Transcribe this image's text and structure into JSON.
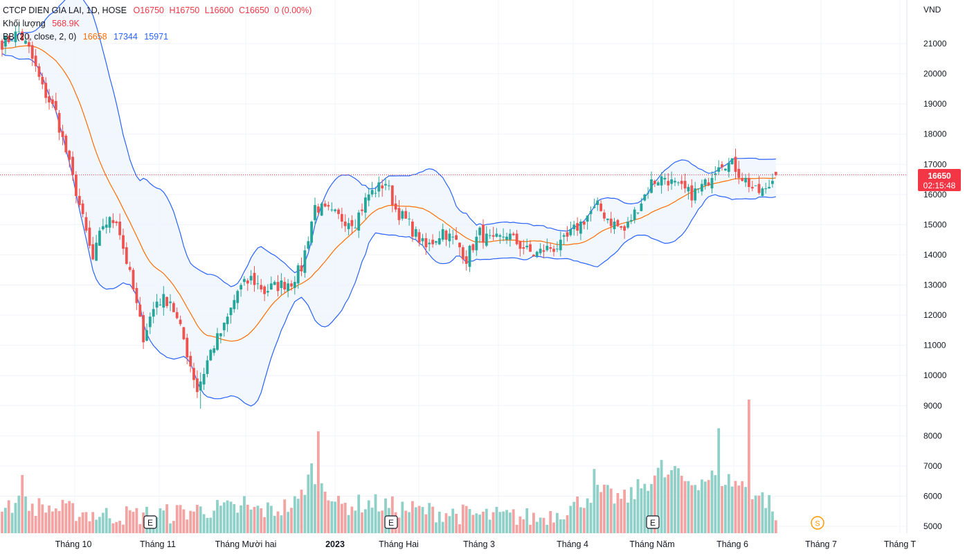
{
  "header": {
    "symbol": "CTCP DIEN GIA LAI, 1D, HOSE",
    "open": "O16750",
    "high": "H16750",
    "low": "L16600",
    "close": "C16650",
    "change": "0 (0.00%)",
    "volume_label": "Khối lượng",
    "volume_value": "568.9K",
    "bb_label": "BB (20, close, 2, 0)",
    "bb_mid": "16658",
    "bb_upper": "17344",
    "bb_lower": "15971"
  },
  "price_tag": {
    "value": "16650",
    "countdown": "02:15:48"
  },
  "colors": {
    "up": "#26a69a",
    "down": "#ef5350",
    "bb_mid": "#ff6d00",
    "bb_band": "#2962ff",
    "bb_fill": "#eef5fc",
    "price_tag": "#f23645"
  },
  "chart_data": {
    "type": "candlestick",
    "currency_label": "VND",
    "y_ticks": [
      5000,
      6000,
      7000,
      8000,
      9000,
      10000,
      11000,
      12000,
      13000,
      14000,
      15000,
      16000,
      17000,
      18000,
      19000,
      20000,
      21000
    ],
    "x_labels": [
      "Tháng 10",
      "Tháng 11",
      "Tháng Mười hai",
      "2023",
      "Tháng Hai",
      "Tháng 3",
      "Tháng 4",
      "Tháng Năm",
      "Tháng 6",
      "Tháng 7",
      "Tháng T"
    ],
    "earnings_marker": "E",
    "dividend_marker": "S",
    "last_price": 16650,
    "price_range": [
      8900,
      21700
    ],
    "keyframes": {
      "close": [
        [
          0,
          21000
        ],
        [
          5,
          21400
        ],
        [
          8,
          20800
        ],
        [
          12,
          19500
        ],
        [
          16,
          18700
        ],
        [
          22,
          16100
        ],
        [
          27,
          13800
        ],
        [
          30,
          15000
        ],
        [
          34,
          15200
        ],
        [
          38,
          13300
        ],
        [
          42,
          11300
        ],
        [
          46,
          12500
        ],
        [
          50,
          12500
        ],
        [
          54,
          11200
        ],
        [
          58,
          9500
        ],
        [
          62,
          10800
        ],
        [
          66,
          11600
        ],
        [
          70,
          12800
        ],
        [
          74,
          13200
        ],
        [
          78,
          12800
        ],
        [
          82,
          13000
        ],
        [
          86,
          13100
        ],
        [
          89,
          13600
        ],
        [
          93,
          15600
        ],
        [
          97,
          15400
        ],
        [
          101,
          15200
        ],
        [
          105,
          15100
        ],
        [
          109,
          16000
        ],
        [
          114,
          16400
        ],
        [
          117,
          15500
        ],
        [
          121,
          15000
        ],
        [
          126,
          14200
        ],
        [
          131,
          14800
        ],
        [
          135,
          14400
        ],
        [
          138,
          13900
        ],
        [
          142,
          14700
        ],
        [
          146,
          14400
        ],
        [
          150,
          14700
        ],
        [
          154,
          14300
        ],
        [
          158,
          14000
        ],
        [
          162,
          14200
        ],
        [
          166,
          14300
        ],
        [
          170,
          14800
        ],
        [
          174,
          15300
        ],
        [
          177,
          15600
        ],
        [
          181,
          15100
        ],
        [
          185,
          14800
        ],
        [
          189,
          15600
        ],
        [
          193,
          16400
        ],
        [
          197,
          16600
        ],
        [
          201,
          16200
        ],
        [
          205,
          16000
        ],
        [
          209,
          16300
        ],
        [
          213,
          17100
        ],
        [
          217,
          17000
        ],
        [
          220,
          16600
        ],
        [
          224,
          16100
        ],
        [
          227,
          16100
        ],
        [
          230,
          16650
        ]
      ],
      "volume": [
        [
          0,
          5700
        ],
        [
          10,
          5600
        ],
        [
          20,
          5450
        ],
        [
          30,
          5300
        ],
        [
          40,
          5300
        ],
        [
          50,
          5350
        ],
        [
          60,
          5500
        ],
        [
          70,
          5500
        ],
        [
          80,
          5450
        ],
        [
          88,
          5700
        ],
        [
          92,
          6800
        ],
        [
          96,
          6300
        ],
        [
          100,
          5600
        ],
        [
          110,
          5700
        ],
        [
          120,
          5500
        ],
        [
          140,
          5300
        ],
        [
          160,
          5200
        ],
        [
          170,
          5600
        ],
        [
          176,
          6100
        ],
        [
          185,
          5800
        ],
        [
          195,
          6700
        ],
        [
          205,
          6400
        ],
        [
          212,
          6600
        ],
        [
          220,
          6300
        ],
        [
          230,
          5600
        ]
      ]
    },
    "volume_spikes": [
      [
        94,
        8150
      ],
      [
        213,
        8250
      ],
      [
        222,
        9200
      ],
      [
        176,
        6900
      ],
      [
        196,
        7200
      ],
      [
        200,
        7000
      ],
      [
        6,
        6700
      ],
      [
        72,
        6000
      ]
    ],
    "bb_middle_start": 20700,
    "bb_end": {
      "middle": 16658,
      "upper": 17344,
      "lower": 15971
    }
  }
}
